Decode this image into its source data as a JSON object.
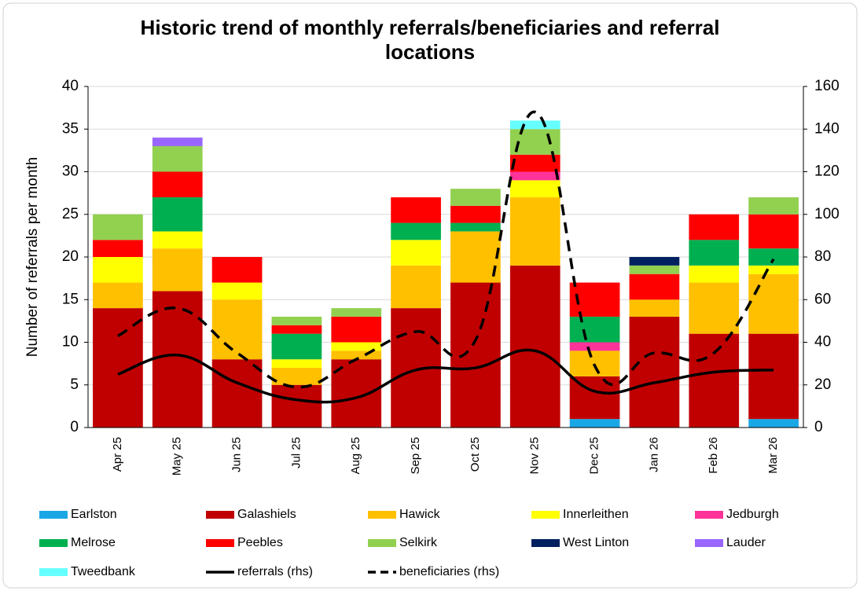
{
  "chart_data": {
    "type": "bar",
    "stacked": true,
    "title": "Historic trend of monthly referrals/beneficiaries and referral locations",
    "y_label": "Number of referrals per month",
    "categories": [
      "Apr 25",
      "May 25",
      "Jun 25",
      "Jul 25",
      "Aug 25",
      "Sep 25",
      "Oct 25",
      "Nov 25",
      "Dec 25",
      "Jan 26",
      "Feb 26",
      "Mar 26"
    ],
    "series": [
      {
        "name": "Earlston",
        "color": "#1aa7e6",
        "values": [
          0,
          0,
          0,
          0,
          0,
          0,
          0,
          0,
          1,
          0,
          0,
          1
        ]
      },
      {
        "name": "Galashiels",
        "color": "#c00000",
        "values": [
          14,
          16,
          8,
          5,
          8,
          14,
          17,
          19,
          5,
          13,
          11,
          10
        ]
      },
      {
        "name": "Hawick",
        "color": "#ffc000",
        "values": [
          3,
          5,
          7,
          2,
          1,
          5,
          6,
          8,
          3,
          2,
          6,
          7
        ]
      },
      {
        "name": "Innerleithen",
        "color": "#ffff00",
        "values": [
          3,
          2,
          2,
          1,
          1,
          3,
          0,
          2,
          0,
          0,
          2,
          1
        ]
      },
      {
        "name": "Jedburgh",
        "color": "#ff3399",
        "values": [
          0,
          0,
          0,
          0,
          0,
          0,
          0,
          1,
          1,
          0,
          0,
          0
        ]
      },
      {
        "name": "Melrose",
        "color": "#00b050",
        "values": [
          0,
          4,
          0,
          3,
          0,
          2,
          1,
          0,
          3,
          0,
          3,
          2
        ]
      },
      {
        "name": "Peebles",
        "color": "#ff0000",
        "values": [
          2,
          3,
          3,
          1,
          3,
          3,
          2,
          2,
          4,
          3,
          3,
          4
        ]
      },
      {
        "name": "Selkirk",
        "color": "#92d050",
        "values": [
          3,
          3,
          0,
          1,
          1,
          0,
          2,
          3,
          0,
          1,
          0,
          2
        ]
      },
      {
        "name": "West Linton",
        "color": "#002060",
        "values": [
          0,
          0,
          0,
          0,
          0,
          0,
          0,
          0,
          0,
          1,
          0,
          0
        ]
      },
      {
        "name": "Lauder",
        "color": "#9966ff",
        "values": [
          0,
          1,
          0,
          0,
          0,
          0,
          0,
          0,
          0,
          0,
          0,
          0
        ]
      },
      {
        "name": "Tweedbank",
        "color": "#66ffff",
        "values": [
          0,
          0,
          0,
          0,
          0,
          0,
          0,
          1,
          0,
          0,
          0,
          0
        ]
      },
      {
        "name": "referrals (rhs)",
        "type": "line",
        "axis": "y2",
        "color": "#000000",
        "dashed": false,
        "values": [
          25,
          34,
          21,
          13,
          14,
          27,
          28,
          36,
          17,
          21,
          26,
          27
        ]
      },
      {
        "name": "beneficiaries (rhs)",
        "type": "line",
        "axis": "y2",
        "color": "#000000",
        "dashed": true,
        "values": [
          43,
          56,
          35,
          19,
          32,
          45,
          41,
          148,
          29,
          35,
          35,
          79
        ]
      }
    ],
    "ylim": [
      0,
      40
    ],
    "yticks": [
      0,
      5,
      10,
      15,
      20,
      25,
      30,
      35,
      40
    ],
    "y2lim": [
      0,
      160
    ],
    "y2ticks": [
      0,
      20,
      40,
      60,
      80,
      100,
      120,
      140,
      160
    ],
    "grid": true,
    "legend": "bottom"
  }
}
